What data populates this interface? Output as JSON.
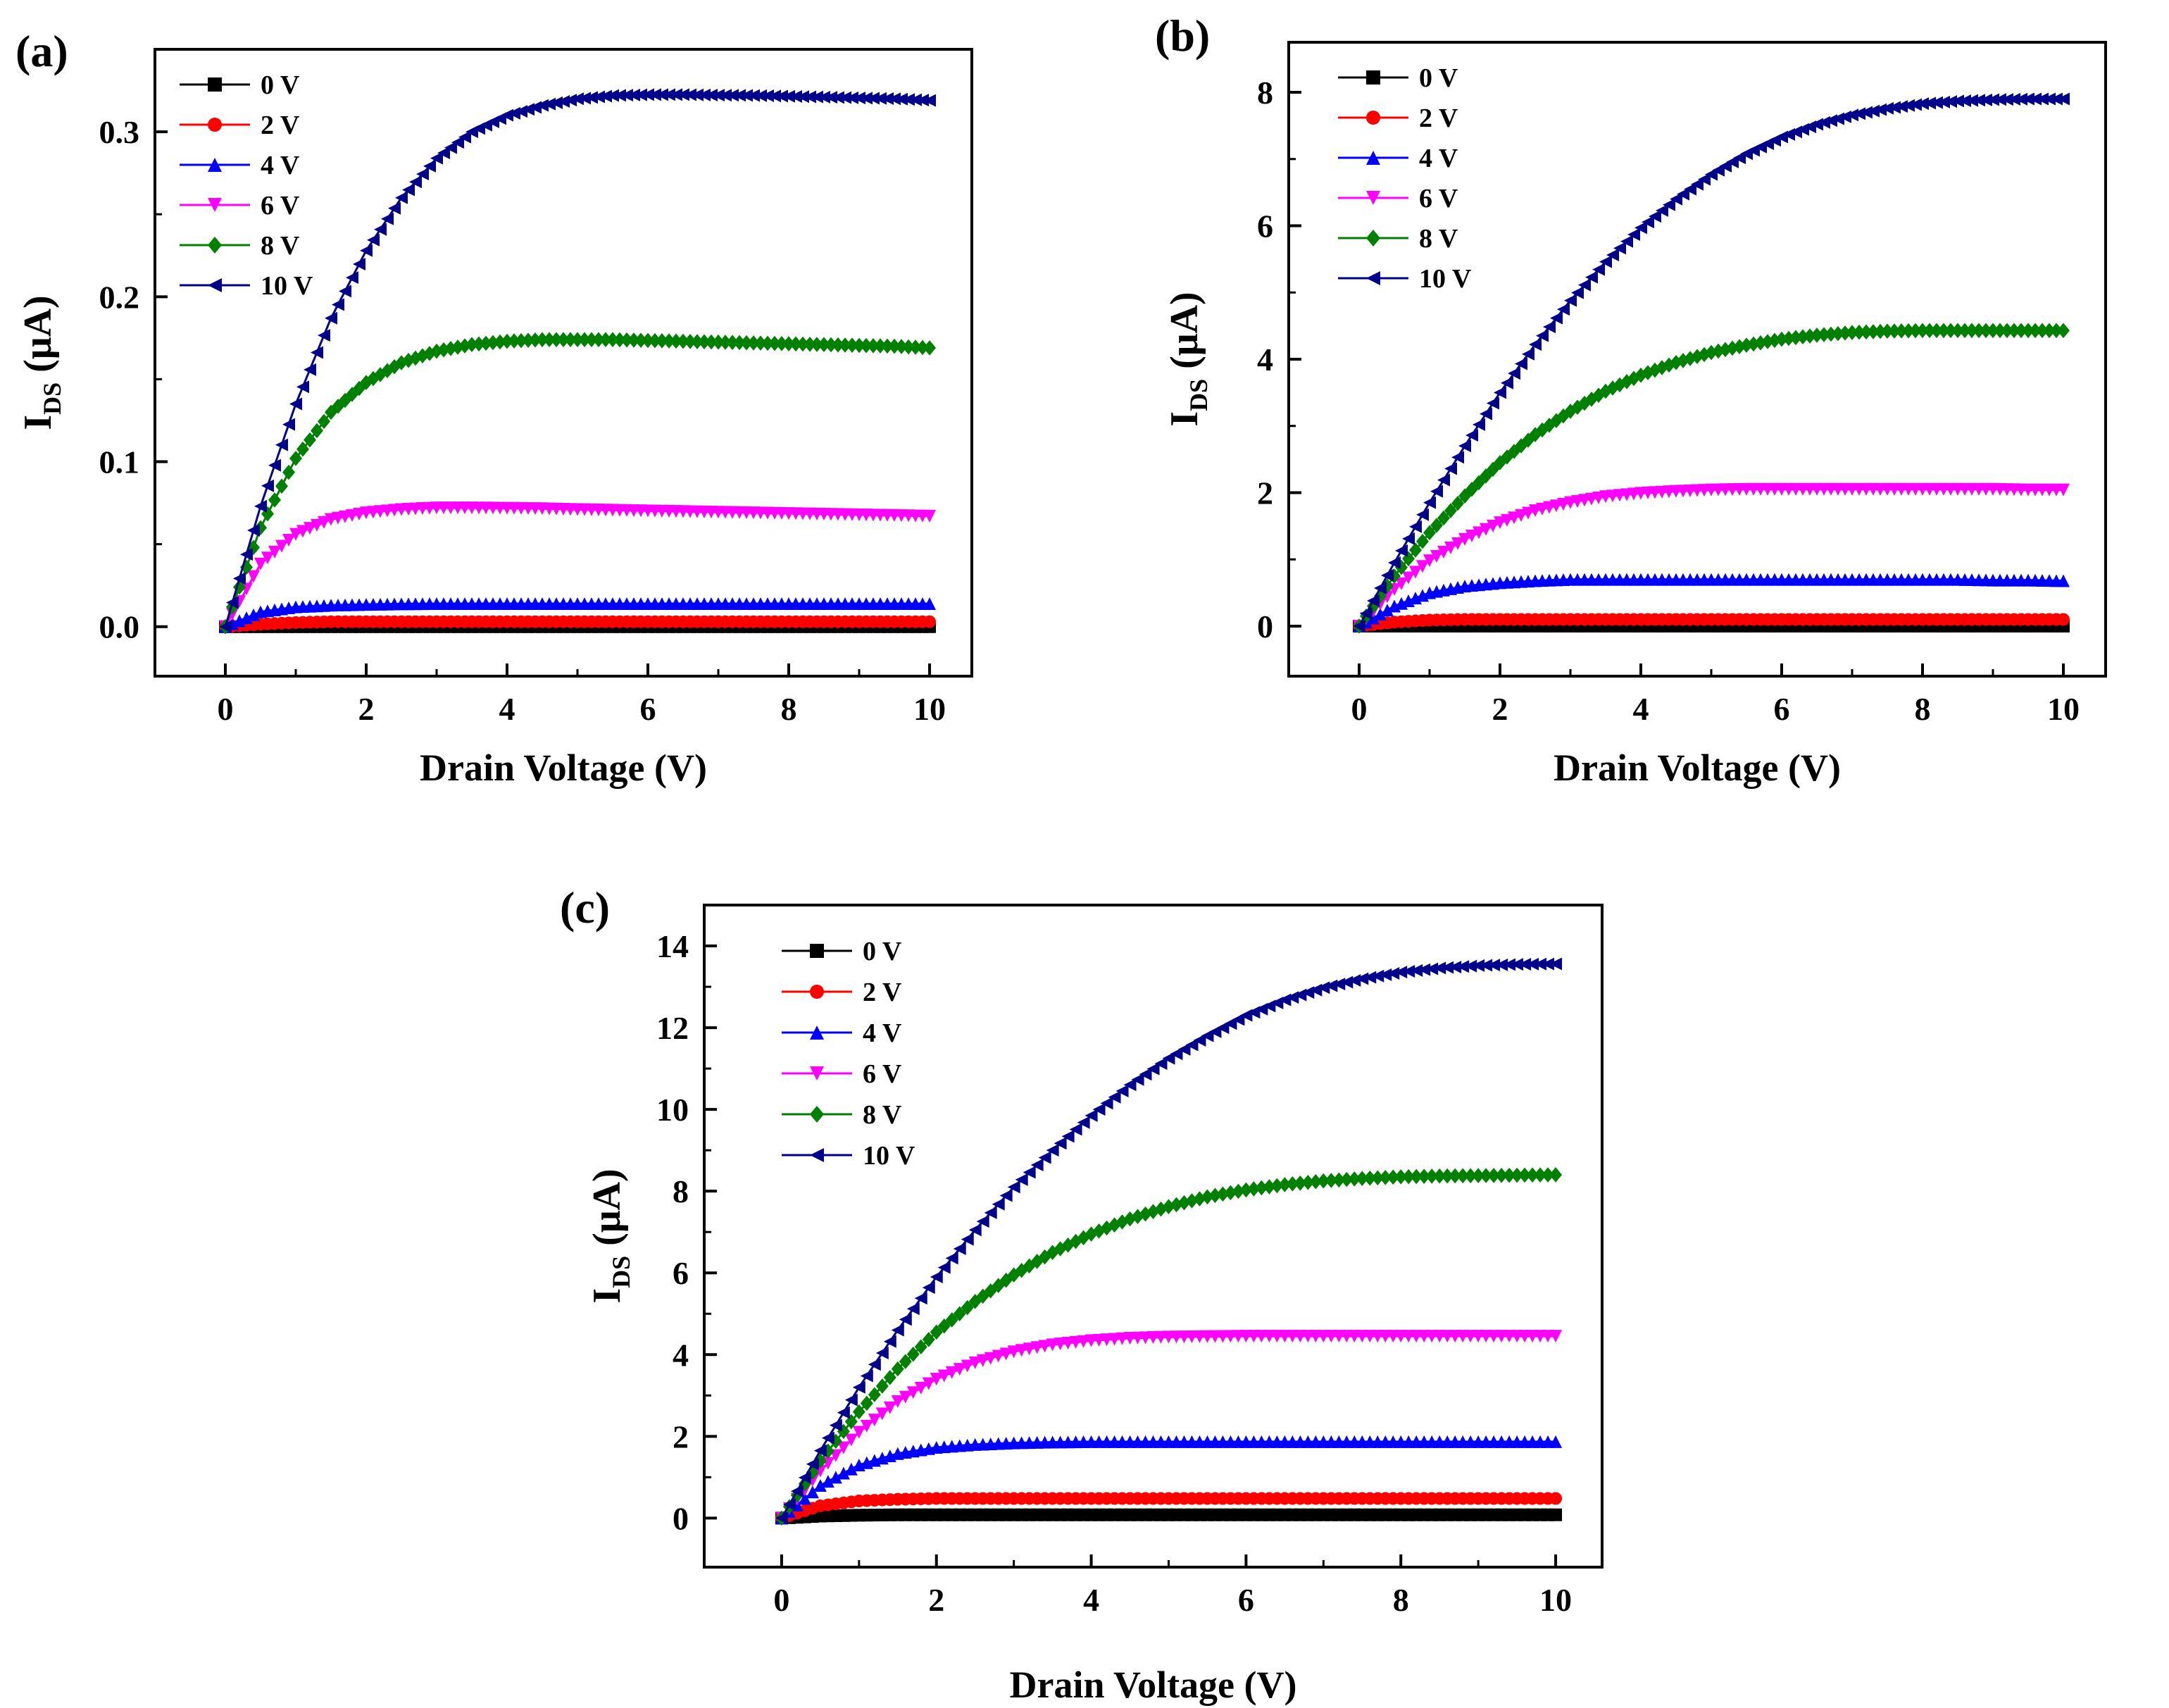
{
  "figure": {
    "legend_labels": [
      "0 V",
      "2 V",
      "4 V",
      "6 V",
      "8 V",
      "10 V"
    ],
    "series_colors": [
      "#000000",
      "#ff0000",
      "#0000ff",
      "#ff00ff",
      "#008000",
      "#00008b"
    ],
    "series_markers": [
      "square",
      "circle",
      "triangle-up",
      "triangle-down",
      "diamond",
      "triangle-left"
    ]
  },
  "chart_data": [
    {
      "type": "line",
      "panel_label": "(a)",
      "xlabel": "Drain Voltage (V)",
      "ylabel": "I",
      "ylabel_sub": "DS",
      "ylabel_unit": "(μA)",
      "xlim": [
        -1,
        10.6
      ],
      "ylim": [
        -0.03,
        0.35
      ],
      "xticks": [
        0,
        2,
        4,
        6,
        8,
        10
      ],
      "xtick_labels": [
        "0",
        "2",
        "4",
        "6",
        "8",
        "10"
      ],
      "yticks": [
        0.0,
        0.1,
        0.2,
        0.3
      ],
      "ytick_labels": [
        "0.0",
        "0.1",
        "0.2",
        "0.3"
      ],
      "x": [
        0,
        0.5,
        1,
        1.5,
        2,
        2.5,
        3,
        3.5,
        4,
        4.5,
        5,
        5.5,
        6,
        6.5,
        7,
        7.5,
        8,
        8.5,
        9,
        9.5,
        10
      ],
      "series": [
        {
          "name": "0 V",
          "values": [
            0,
            0,
            0,
            0,
            0,
            0,
            0,
            0,
            0,
            0,
            0,
            0,
            0,
            0,
            0,
            0,
            0,
            0,
            0,
            0,
            0
          ]
        },
        {
          "name": "2 V",
          "values": [
            0,
            0.0015,
            0.0025,
            0.003,
            0.003,
            0.003,
            0.003,
            0.003,
            0.003,
            0.003,
            0.003,
            0.003,
            0.003,
            0.003,
            0.003,
            0.003,
            0.003,
            0.003,
            0.003,
            0.003,
            0.003
          ]
        },
        {
          "name": "4 V",
          "values": [
            0,
            0.009,
            0.012,
            0.013,
            0.0135,
            0.0138,
            0.014,
            0.014,
            0.014,
            0.014,
            0.014,
            0.014,
            0.014,
            0.014,
            0.014,
            0.014,
            0.014,
            0.014,
            0.014,
            0.014,
            0.014
          ]
        },
        {
          "name": "6 V",
          "values": [
            0,
            0.038,
            0.056,
            0.065,
            0.069,
            0.071,
            0.072,
            0.072,
            0.0718,
            0.0715,
            0.071,
            0.0706,
            0.0702,
            0.0698,
            0.0694,
            0.069,
            0.0686,
            0.0682,
            0.0678,
            0.0674,
            0.067
          ]
        },
        {
          "name": "8 V",
          "values": [
            0,
            0.06,
            0.102,
            0.13,
            0.148,
            0.16,
            0.167,
            0.171,
            0.173,
            0.174,
            0.174,
            0.174,
            0.1735,
            0.173,
            0.1725,
            0.172,
            0.1715,
            0.171,
            0.1705,
            0.17,
            0.169
          ]
        },
        {
          "name": "10 V",
          "values": [
            0,
            0.073,
            0.135,
            0.187,
            0.228,
            0.26,
            0.284,
            0.3,
            0.31,
            0.316,
            0.32,
            0.322,
            0.3225,
            0.3225,
            0.3222,
            0.322,
            0.3215,
            0.321,
            0.3205,
            0.32,
            0.319
          ]
        }
      ]
    },
    {
      "type": "line",
      "panel_label": "(b)",
      "xlabel": "Drain Voltage (V)",
      "ylabel": "I",
      "ylabel_sub": "DS",
      "ylabel_unit": "(μA)",
      "xlim": [
        -1,
        10.6
      ],
      "ylim": [
        -0.75,
        8.75
      ],
      "xticks": [
        0,
        2,
        4,
        6,
        8,
        10
      ],
      "xtick_labels": [
        "0",
        "2",
        "4",
        "6",
        "8",
        "10"
      ],
      "yticks": [
        0,
        2,
        4,
        6,
        8
      ],
      "ytick_labels": [
        "0",
        "2",
        "4",
        "6",
        "8"
      ],
      "x": [
        0,
        0.5,
        1,
        1.5,
        2,
        2.5,
        3,
        3.5,
        4,
        4.5,
        5,
        5.5,
        6,
        6.5,
        7,
        7.5,
        8,
        8.5,
        9,
        9.5,
        10
      ],
      "series": [
        {
          "name": "0 V",
          "values": [
            0,
            0,
            0,
            0,
            0,
            0,
            0,
            0,
            0,
            0,
            0,
            0,
            0,
            0,
            0,
            0,
            0,
            0,
            0,
            0,
            0
          ]
        },
        {
          "name": "2 V",
          "values": [
            0,
            0.06,
            0.09,
            0.1,
            0.1,
            0.1,
            0.1,
            0.1,
            0.1,
            0.1,
            0.1,
            0.1,
            0.1,
            0.1,
            0.1,
            0.1,
            0.1,
            0.1,
            0.1,
            0.1,
            0.1
          ]
        },
        {
          "name": "4 V",
          "values": [
            0,
            0.3,
            0.5,
            0.6,
            0.65,
            0.68,
            0.7,
            0.7,
            0.7,
            0.7,
            0.7,
            0.7,
            0.7,
            0.7,
            0.7,
            0.7,
            0.7,
            0.7,
            0.69,
            0.69,
            0.68
          ]
        },
        {
          "name": "6 V",
          "values": [
            0,
            0.55,
            0.98,
            1.3,
            1.55,
            1.73,
            1.85,
            1.94,
            1.99,
            2.02,
            2.04,
            2.05,
            2.05,
            2.05,
            2.05,
            2.05,
            2.05,
            2.05,
            2.05,
            2.04,
            2.04
          ]
        },
        {
          "name": "8 V",
          "values": [
            0,
            0.75,
            1.4,
            1.95,
            2.45,
            2.87,
            3.22,
            3.52,
            3.76,
            3.95,
            4.1,
            4.21,
            4.3,
            4.36,
            4.4,
            4.42,
            4.43,
            4.43,
            4.43,
            4.43,
            4.43
          ]
        },
        {
          "name": "10 V",
          "values": [
            0,
            0.95,
            1.85,
            2.7,
            3.5,
            4.22,
            4.88,
            5.46,
            5.97,
            6.4,
            6.77,
            7.08,
            7.33,
            7.52,
            7.66,
            7.76,
            7.83,
            7.87,
            7.89,
            7.9,
            7.9
          ]
        }
      ]
    },
    {
      "type": "line",
      "panel_label": "(c)",
      "xlabel": "Drain Voltage (V)",
      "ylabel": "I",
      "ylabel_sub": "DS",
      "ylabel_unit": "(μA)",
      "xlim": [
        -1,
        10.6
      ],
      "ylim": [
        -1.2,
        15
      ],
      "xticks": [
        0,
        2,
        4,
        6,
        8,
        10
      ],
      "xtick_labels": [
        "0",
        "2",
        "4",
        "6",
        "8",
        "10"
      ],
      "yticks": [
        0,
        2,
        4,
        6,
        8,
        10,
        12,
        14
      ],
      "ytick_labels": [
        "0",
        "2",
        "4",
        "6",
        "8",
        "10",
        "12",
        "14"
      ],
      "x": [
        0,
        0.5,
        1,
        1.5,
        2,
        2.5,
        3,
        3.5,
        4,
        4.5,
        5,
        5.5,
        6,
        6.5,
        7,
        7.5,
        8,
        8.5,
        9,
        9.5,
        10
      ],
      "series": [
        {
          "name": "0 V",
          "values": [
            0,
            0.05,
            0.07,
            0.08,
            0.08,
            0.08,
            0.08,
            0.08,
            0.08,
            0.08,
            0.08,
            0.08,
            0.08,
            0.08,
            0.08,
            0.08,
            0.08,
            0.08,
            0.08,
            0.08,
            0.08
          ]
        },
        {
          "name": "2 V",
          "values": [
            0,
            0.3,
            0.42,
            0.46,
            0.48,
            0.48,
            0.48,
            0.48,
            0.48,
            0.48,
            0.48,
            0.48,
            0.48,
            0.48,
            0.48,
            0.48,
            0.48,
            0.48,
            0.48,
            0.48,
            0.48
          ]
        },
        {
          "name": "4 V",
          "values": [
            0,
            0.8,
            1.3,
            1.58,
            1.73,
            1.8,
            1.84,
            1.86,
            1.87,
            1.87,
            1.87,
            1.87,
            1.87,
            1.87,
            1.87,
            1.87,
            1.87,
            1.87,
            1.87,
            1.87,
            1.87
          ]
        },
        {
          "name": "6 V",
          "values": [
            0,
            1.15,
            2.1,
            2.85,
            3.4,
            3.8,
            4.07,
            4.24,
            4.34,
            4.4,
            4.43,
            4.44,
            4.45,
            4.45,
            4.45,
            4.45,
            4.45,
            4.45,
            4.45,
            4.45,
            4.45
          ]
        },
        {
          "name": "8 V",
          "values": [
            0,
            1.4,
            2.6,
            3.65,
            4.55,
            5.3,
            5.95,
            6.5,
            6.95,
            7.32,
            7.62,
            7.86,
            8.03,
            8.16,
            8.25,
            8.31,
            8.35,
            8.37,
            8.38,
            8.39,
            8.4
          ]
        },
        {
          "name": "10 V",
          "values": [
            0,
            1.65,
            3.2,
            4.6,
            5.9,
            7.05,
            8.1,
            9.0,
            9.85,
            10.6,
            11.25,
            11.8,
            12.3,
            12.68,
            12.98,
            13.2,
            13.36,
            13.46,
            13.52,
            13.55,
            13.56
          ]
        }
      ]
    }
  ]
}
